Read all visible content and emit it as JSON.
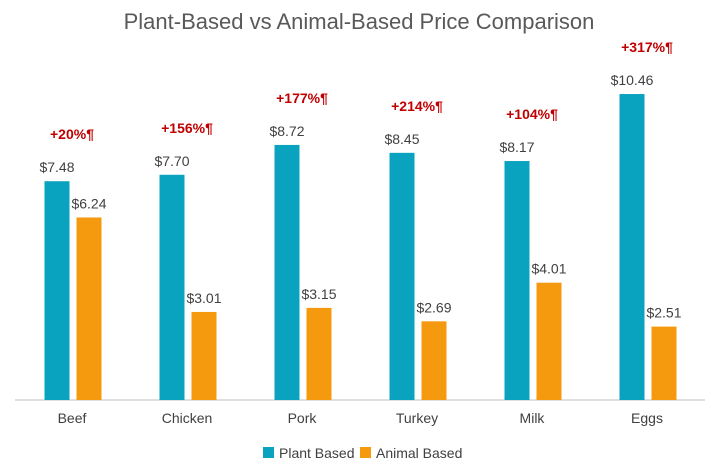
{
  "chart_data": {
    "type": "bar",
    "title": "Plant-Based vs Animal-Based Price Comparison",
    "xlabel": "",
    "ylabel": "",
    "categories": [
      "Beef",
      "Chicken",
      "Pork",
      "Turkey",
      "Milk",
      "Eggs"
    ],
    "series": [
      {
        "name": "Plant Based",
        "color": "#0aa3bf",
        "values": [
          7.48,
          7.7,
          8.72,
          8.45,
          8.17,
          10.46
        ],
        "labels": [
          "$7.48",
          "$7.70",
          "$8.72",
          "$8.45",
          "$8.17",
          "$10.46"
        ]
      },
      {
        "name": "Animal Based",
        "color": "#f5990e",
        "values": [
          6.24,
          3.01,
          3.15,
          2.69,
          4.01,
          2.51
        ],
        "labels": [
          "$6.24",
          "$3.01",
          "$3.15",
          "$2.69",
          "$4.01",
          "$2.51"
        ]
      }
    ],
    "annotations": [
      "+20%¶",
      "+156%¶",
      "+177%¶",
      "+214%¶",
      "+104%¶",
      "+317%¶"
    ],
    "annotation_color": "#c00000",
    "ylim": [
      0,
      12.5
    ],
    "grid": false,
    "legend_position": "bottom"
  }
}
